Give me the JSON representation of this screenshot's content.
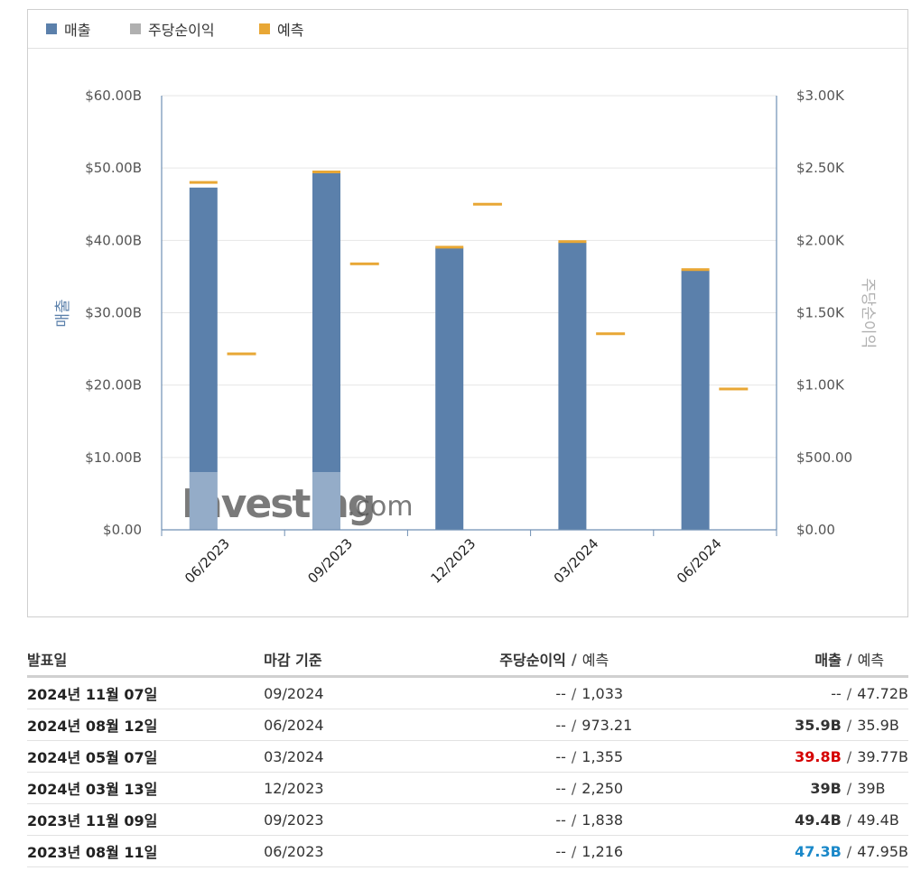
{
  "legend": {
    "revenue": {
      "label": "매출",
      "color": "#5b80ab"
    },
    "eps": {
      "label": "주당순이익",
      "color": "#b0b0b0"
    },
    "forecast": {
      "label": "예측",
      "color": "#e8a735"
    }
  },
  "chart_data": {
    "type": "bar",
    "categories": [
      "06/2023",
      "09/2023",
      "12/2023",
      "03/2024",
      "06/2024"
    ],
    "left_axis": {
      "label": "매출",
      "ticks": [
        "$0.00",
        "$10.00B",
        "$20.00B",
        "$30.00B",
        "$40.00B",
        "$50.00B",
        "$60.00B"
      ],
      "ylim": [
        0,
        60
      ]
    },
    "right_axis": {
      "label": "주당순이익",
      "ticks": [
        "$0.00",
        "$500.00",
        "$1.00K",
        "$1.50K",
        "$2.00K",
        "$2.50K",
        "$3.00K"
      ],
      "ylim": [
        0,
        3000
      ]
    },
    "series": [
      {
        "name": "매출",
        "axis": "left",
        "values": [
          47.3,
          49.4,
          39,
          39.8,
          35.9
        ],
        "color": "#5b80ab"
      },
      {
        "name": "매출 예측",
        "axis": "left",
        "values": [
          47.95,
          49.4,
          39,
          39.77,
          35.9
        ],
        "color": "#e8a735"
      },
      {
        "name": "예측",
        "axis": "right",
        "values": [
          1216,
          1838,
          2250,
          1355,
          973.21
        ],
        "color": "#e8a735"
      }
    ],
    "grid": true,
    "legend_position": "top-left"
  },
  "watermark": {
    "brand": "Investing",
    "suffix": ".com"
  },
  "table": {
    "headers": {
      "date": "발표일",
      "period": "마감 기준",
      "eps": "주당순이익",
      "eps_forecast": "예측",
      "revenue": "매출",
      "revenue_forecast": "예측",
      "separator": "/"
    },
    "rows": [
      {
        "date": "2024년 11월 07일",
        "period": "09/2024",
        "eps": "--",
        "eps_forecast": "1,033",
        "revenue": "--",
        "revenue_forecast": "47.72B",
        "revenue_style": "plain"
      },
      {
        "date": "2024년 08월 12일",
        "period": "06/2024",
        "eps": "--",
        "eps_forecast": "973.21",
        "revenue": "35.9B",
        "revenue_forecast": "35.9B",
        "revenue_style": "bold"
      },
      {
        "date": "2024년 05월 07일",
        "period": "03/2024",
        "eps": "--",
        "eps_forecast": "1,355",
        "revenue": "39.8B",
        "revenue_forecast": "39.77B",
        "revenue_style": "red"
      },
      {
        "date": "2024년 03월 13일",
        "period": "12/2023",
        "eps": "--",
        "eps_forecast": "2,250",
        "revenue": "39B",
        "revenue_forecast": "39B",
        "revenue_style": "bold"
      },
      {
        "date": "2023년 11월 09일",
        "period": "09/2023",
        "eps": "--",
        "eps_forecast": "1,838",
        "revenue": "49.4B",
        "revenue_forecast": "49.4B",
        "revenue_style": "bold"
      },
      {
        "date": "2023년 08월 11일",
        "period": "06/2023",
        "eps": "--",
        "eps_forecast": "1,216",
        "revenue": "47.3B",
        "revenue_forecast": "47.95B",
        "revenue_style": "blue"
      }
    ]
  }
}
